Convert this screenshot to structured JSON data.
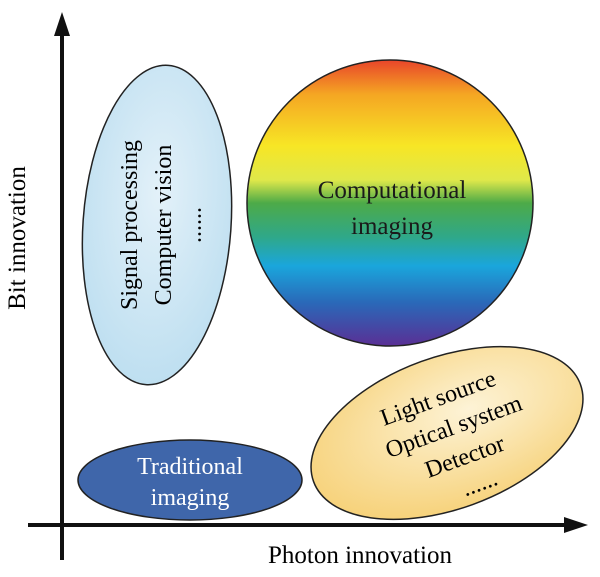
{
  "axes": {
    "y_label": "Bit innovation",
    "x_label": "Photon innovation"
  },
  "regions": {
    "signal": {
      "lines": [
        "Signal processing",
        "Computer vision",
        "......"
      ],
      "color": "#cfe6f3"
    },
    "computational": {
      "lines": [
        "Computational",
        "imaging"
      ],
      "gradient": [
        "#e8452a",
        "#f5a623",
        "#f7e625",
        "#e3ea3a",
        "#4daa48",
        "#2fa88a",
        "#1aa6dc",
        "#2a68b8",
        "#5a2f95"
      ]
    },
    "hardware": {
      "lines": [
        "Light source",
        "Optical system",
        "Detector",
        "......"
      ],
      "color": "#f8d98a"
    },
    "traditional": {
      "lines": [
        "Traditional",
        "imaging"
      ],
      "color": "#3f66aa"
    }
  }
}
